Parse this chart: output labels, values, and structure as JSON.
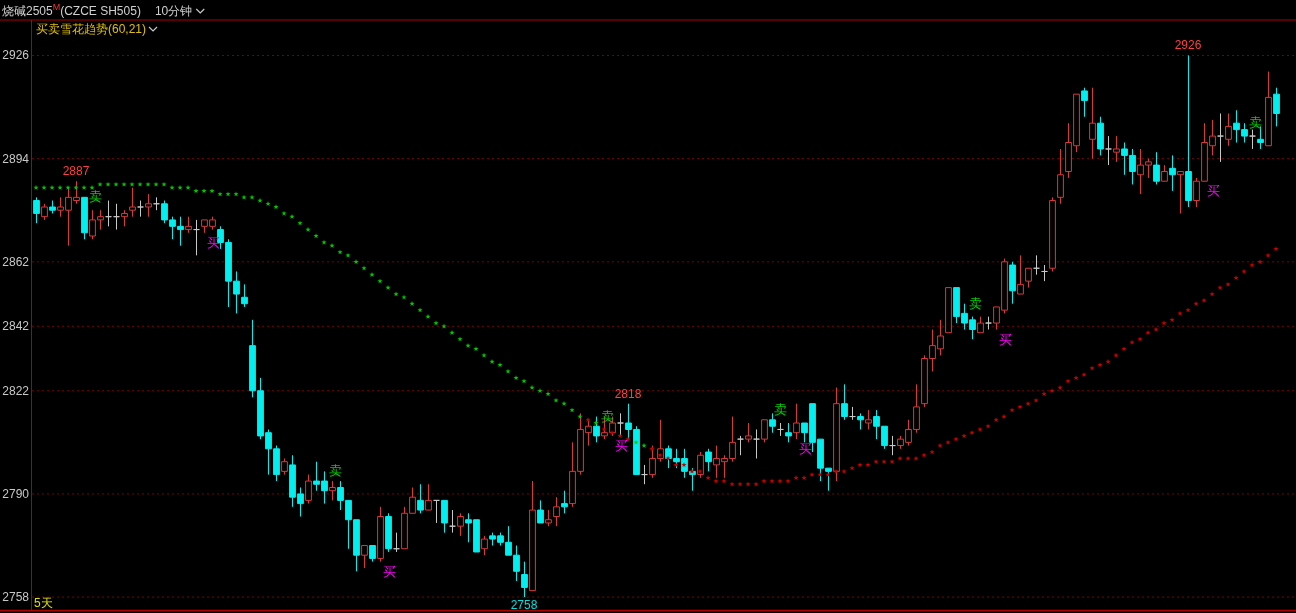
{
  "chart_data": {
    "type": "candlestick",
    "title": "烧碱2505$^{M}$(CZCE SH505)",
    "subtitle": "10分钟",
    "categories": [
      null,
      null,
      null,
      null,
      null,
      null,
      null,
      null,
      null,
      null,
      null,
      null,
      null,
      null,
      null,
      null,
      null,
      null,
      null,
      null,
      null,
      null,
      null,
      null,
      null,
      null,
      null,
      null,
      null,
      null,
      null,
      null,
      null,
      null,
      null,
      null,
      null,
      null,
      null,
      null,
      null,
      null,
      null,
      null,
      null,
      null,
      null,
      null,
      null,
      null,
      null,
      null,
      null,
      null,
      null,
      null,
      null,
      null,
      null,
      null,
      null,
      null,
      null,
      null,
      null,
      null,
      null,
      null,
      null,
      null,
      null,
      null,
      null,
      null,
      null,
      null,
      null,
      null,
      null,
      null,
      null,
      null,
      null,
      null,
      null,
      null,
      null,
      null,
      null,
      null,
      null,
      null,
      null,
      null,
      null,
      null,
      null,
      null,
      null,
      null,
      null,
      null,
      null,
      null,
      null,
      null,
      null,
      null,
      null,
      null,
      null,
      null,
      null,
      null,
      null,
      null,
      null,
      null,
      null,
      null,
      null,
      null,
      null,
      null,
      null,
      null,
      null,
      null,
      null,
      null,
      null,
      null,
      null,
      null,
      null,
      null,
      null,
      null,
      null,
      null,
      null,
      null,
      null,
      null,
      null,
      null,
      null,
      null,
      null,
      null,
      null,
      null,
      null,
      null,
      null,
      null
    ],
    "ohlc": [
      [
        2881,
        2882,
        2874,
        2877
      ],
      [
        2876,
        2880,
        2875,
        2879
      ],
      [
        2879,
        2881,
        2877,
        2878
      ],
      [
        2878,
        2882,
        2876,
        2879
      ],
      [
        2878,
        2885,
        2867,
        2882
      ],
      [
        2881,
        2887,
        2880,
        2882
      ],
      [
        2882,
        2882,
        2869,
        2871
      ],
      [
        2870,
        2878,
        2869,
        2875
      ],
      [
        2875,
        2878,
        2872,
        2876
      ],
      [
        2876,
        2881,
        2873,
        2876
      ],
      [
        2876,
        2880,
        2872,
        2876
      ],
      [
        2876,
        2878,
        2873,
        2877
      ],
      [
        2878,
        2885,
        2876,
        2879
      ],
      [
        2879,
        2881,
        2876,
        2879
      ],
      [
        2879,
        2883,
        2876,
        2880
      ],
      [
        2880,
        2882,
        2878,
        2880
      ],
      [
        2880,
        2881,
        2874,
        2875
      ],
      [
        2875,
        2876,
        2869,
        2873
      ],
      [
        2873,
        2876,
        2867,
        2872
      ],
      [
        2872,
        2876,
        2871,
        2873
      ],
      [
        2872,
        2875,
        2864,
        2872
      ],
      [
        2873,
        2875,
        2871,
        2875
      ],
      [
        2873,
        2876,
        2872,
        2875
      ],
      [
        2872,
        2873,
        2866,
        2868
      ],
      [
        2868,
        2869,
        2848,
        2856
      ],
      [
        2856,
        2859,
        2846,
        2852
      ],
      [
        2851,
        2855,
        2848,
        2849
      ],
      [
        2836,
        2844,
        2820,
        2822
      ],
      [
        2822,
        2826,
        2807,
        2808
      ],
      [
        2809,
        2810,
        2796,
        2804
      ],
      [
        2804,
        2805,
        2794,
        2796
      ],
      [
        2797,
        2801,
        2796,
        2800
      ],
      [
        2799,
        2802,
        2786,
        2789
      ],
      [
        2790,
        2792,
        2783,
        2787
      ],
      [
        2788,
        2796,
        2787,
        2794
      ],
      [
        2794,
        2800,
        2791,
        2793
      ],
      [
        2794,
        2797,
        2787,
        2791
      ],
      [
        2791,
        2794,
        2788,
        2792
      ],
      [
        2792,
        2794,
        2785,
        2788
      ],
      [
        2788,
        2788,
        2773,
        2782
      ],
      [
        2782,
        2782,
        2766,
        2771
      ],
      [
        2771,
        2774,
        2767,
        2774
      ],
      [
        2774,
        2774,
        2769,
        2770
      ],
      [
        2770,
        2786,
        2769,
        2783
      ],
      [
        2783,
        2784,
        2772,
        2773
      ],
      [
        2773,
        2778,
        2772,
        2773
      ],
      [
        2773,
        2786,
        2773,
        2784
      ],
      [
        2784,
        2792,
        2784,
        2789
      ],
      [
        2788,
        2793,
        2784,
        2785
      ],
      [
        2785,
        2793,
        2785,
        2788
      ],
      [
        2788,
        2788,
        2781,
        2788
      ],
      [
        2788,
        2788,
        2778,
        2781
      ],
      [
        2780,
        2785,
        2778,
        2780
      ],
      [
        2780,
        2784,
        2777,
        2783
      ],
      [
        2782,
        2784,
        2775,
        2781
      ],
      [
        2782,
        2782,
        2772,
        2772
      ],
      [
        2773,
        2777,
        2771,
        2776
      ],
      [
        2777,
        2778,
        2774,
        2776
      ],
      [
        2777,
        2778,
        2774,
        2775
      ],
      [
        2775,
        2780,
        2771,
        2771
      ],
      [
        2771,
        2774,
        2763,
        2766
      ],
      [
        2765,
        2769,
        2758,
        2761
      ],
      [
        2760,
        2794,
        2760,
        2785
      ],
      [
        2785,
        2788,
        2781,
        2781
      ],
      [
        2781,
        2785,
        2780,
        2782
      ],
      [
        2783,
        2789,
        2780,
        2786
      ],
      [
        2787,
        2791,
        2784,
        2786
      ],
      [
        2787,
        2806,
        2786,
        2797
      ],
      [
        2797,
        2815,
        2796,
        2810
      ],
      [
        2809,
        2813,
        2805,
        2811
      ],
      [
        2811,
        2814,
        2806,
        2808
      ],
      [
        2808,
        2814,
        2807,
        2809
      ],
      [
        2809,
        2814,
        2808,
        2812
      ],
      [
        2812,
        2815,
        2808,
        2812
      ],
      [
        2812,
        2818,
        2807,
        2810
      ],
      [
        2810,
        2811,
        2796,
        2796
      ],
      [
        2796,
        2799,
        2793,
        2796
      ],
      [
        2796,
        2805,
        2795,
        2801
      ],
      [
        2801,
        2813,
        2800,
        2804
      ],
      [
        2804,
        2805,
        2798,
        2801
      ],
      [
        2801,
        2804,
        2798,
        2800
      ],
      [
        2801,
        2804,
        2795,
        2797
      ],
      [
        2797,
        2798,
        2791,
        2796
      ],
      [
        2796,
        2803,
        2795,
        2802
      ],
      [
        2803,
        2804,
        2797,
        2800
      ],
      [
        2799,
        2805,
        2795,
        2801
      ],
      [
        2800,
        2802,
        2795,
        2801
      ],
      [
        2801,
        2814,
        2800,
        2806
      ],
      [
        2807,
        2808,
        2802,
        2807
      ],
      [
        2807,
        2812,
        2806,
        2808
      ],
      [
        2807,
        2810,
        2801,
        2807
      ],
      [
        2807,
        2813,
        2806,
        2813
      ],
      [
        2813,
        2815,
        2809,
        2811
      ],
      [
        2810,
        2812,
        2808,
        2810
      ],
      [
        2809,
        2812,
        2806,
        2808
      ],
      [
        2809,
        2818,
        2807,
        2812
      ],
      [
        2812,
        2812,
        2806,
        2809
      ],
      [
        2818,
        2818,
        2803,
        2806
      ],
      [
        2807,
        2807,
        2794,
        2798
      ],
      [
        2798,
        2798,
        2791,
        2797
      ],
      [
        2797,
        2823,
        2794,
        2818
      ],
      [
        2818,
        2824,
        2813,
        2814
      ],
      [
        2814,
        2817,
        2813,
        2814
      ],
      [
        2814,
        2815,
        2810,
        2813
      ],
      [
        2812,
        2816,
        2810,
        2813
      ],
      [
        2814,
        2816,
        2807,
        2811
      ],
      [
        2811,
        2811,
        2804,
        2805
      ],
      [
        2805,
        2808,
        2802,
        2805
      ],
      [
        2805,
        2808,
        2804,
        2807
      ],
      [
        2806,
        2813,
        2805,
        2810
      ],
      [
        2810,
        2824,
        2809,
        2817
      ],
      [
        2818,
        2833,
        2817,
        2832
      ],
      [
        2832,
        2841,
        2828,
        2836
      ],
      [
        2835,
        2844,
        2833,
        2839
      ],
      [
        2840,
        2854,
        2840,
        2854
      ],
      [
        2854,
        2854,
        2843,
        2845
      ],
      [
        2846,
        2849,
        2841,
        2843
      ],
      [
        2844,
        2845,
        2838,
        2841
      ],
      [
        2840,
        2845,
        2840,
        2843
      ],
      [
        2843,
        2845,
        2841,
        2843
      ],
      [
        2843,
        2848,
        2841,
        2848
      ],
      [
        2847,
        2863,
        2846,
        2862
      ],
      [
        2861,
        2862,
        2849,
        2853
      ],
      [
        2852,
        2864,
        2852,
        2855
      ],
      [
        2856,
        2860,
        2854,
        2860
      ],
      [
        2860,
        2864,
        2858,
        2860
      ],
      [
        2859,
        2861,
        2856,
        2859
      ],
      [
        2860,
        2882,
        2859,
        2881
      ],
      [
        2882,
        2897,
        2880,
        2889
      ],
      [
        2890,
        2905,
        2888,
        2899
      ],
      [
        2898,
        2914,
        2896,
        2914
      ],
      [
        2915,
        2916,
        2907,
        2912
      ],
      [
        2900,
        2916,
        2894,
        2905
      ],
      [
        2905,
        2907,
        2895,
        2897
      ],
      [
        2897,
        2901,
        2892,
        2897
      ],
      [
        2896,
        2901,
        2893,
        2897
      ],
      [
        2897,
        2899,
        2889,
        2895
      ],
      [
        2895,
        2897,
        2886,
        2890
      ],
      [
        2889,
        2897,
        2883,
        2892
      ],
      [
        2892,
        2894,
        2888,
        2893
      ],
      [
        2892,
        2896,
        2886,
        2887
      ],
      [
        2887,
        2892,
        2887,
        2890
      ],
      [
        2891,
        2895,
        2884,
        2889
      ],
      [
        2889,
        2890,
        2877,
        2890
      ],
      [
        2890,
        2926,
        2879,
        2881
      ],
      [
        2881,
        2888,
        2879,
        2887
      ],
      [
        2887,
        2905,
        2887,
        2899
      ],
      [
        2898,
        2906,
        2895,
        2901
      ],
      [
        2901,
        2908,
        2893,
        2901
      ],
      [
        2900,
        2908,
        2898,
        2904
      ],
      [
        2905,
        2909,
        2899,
        2903
      ],
      [
        2903,
        2905,
        2899,
        2901
      ],
      [
        2901,
        2903,
        2897,
        2901
      ],
      [
        2900,
        2904,
        2897,
        2899
      ],
      [
        2898,
        2921,
        2898,
        2913
      ],
      [
        2914,
        2916,
        2904,
        2908
      ]
    ],
    "series": [
      {
        "type": "scatter",
        "color": "#00c800",
        "values": [
          2885,
          2885,
          2885,
          2885,
          2885,
          2885,
          2885,
          2885,
          2886,
          2886,
          2886,
          2886,
          2886,
          2886,
          2886,
          2886,
          2886,
          2885,
          2885,
          2885,
          2884,
          2884,
          2884,
          2883,
          2883,
          2883,
          2882,
          2882,
          2881,
          2880,
          2879,
          2877,
          2876,
          2874,
          2872,
          2870,
          2868,
          2867,
          2865,
          2864,
          2862,
          2860,
          2858,
          2856,
          2854,
          2852,
          2851,
          2849,
          2847,
          2845,
          2843,
          2842,
          2840,
          2838,
          2836,
          2835,
          2833,
          2831,
          2830,
          2828,
          2826,
          2825,
          2823,
          2822,
          2821,
          2819,
          2818,
          2816,
          2814,
          null,
          2812,
          null,
          null,
          null,
          null,
          2806,
          2805,
          null,
          null,
          null,
          null,
          null,
          null,
          null,
          null,
          null,
          null,
          null,
          null,
          null,
          null,
          null,
          null,
          null,
          null,
          null,
          null,
          null,
          null,
          null,
          null,
          null,
          null,
          null,
          null,
          null,
          null,
          null,
          null,
          null,
          null,
          null,
          null,
          null,
          null,
          null,
          null,
          null,
          null,
          null,
          null,
          null,
          null,
          null,
          null,
          null,
          null,
          null,
          null,
          null,
          null,
          null,
          null,
          null,
          null,
          null,
          null,
          null,
          null,
          null,
          null,
          null,
          null,
          null,
          null,
          null,
          null,
          null,
          null,
          null,
          null,
          null,
          null,
          null,
          null,
          null
        ]
      },
      {
        "type": "scatter",
        "color": "#c80000",
        "values": [
          null,
          null,
          null,
          null,
          null,
          null,
          null,
          null,
          null,
          null,
          null,
          null,
          null,
          null,
          null,
          null,
          null,
          null,
          null,
          null,
          null,
          null,
          null,
          null,
          null,
          null,
          null,
          null,
          null,
          null,
          null,
          null,
          null,
          null,
          null,
          null,
          null,
          null,
          null,
          null,
          null,
          null,
          null,
          null,
          null,
          null,
          null,
          null,
          null,
          null,
          null,
          null,
          null,
          null,
          null,
          null,
          null,
          null,
          null,
          null,
          null,
          null,
          null,
          null,
          null,
          null,
          null,
          null,
          null,
          2813,
          null,
          2810,
          2809,
          2808,
          2807,
          null,
          null,
          2804,
          2802,
          2801,
          2799,
          2799,
          2797,
          2797,
          2795,
          2794,
          2794,
          2793,
          2793,
          2793,
          2793,
          2794,
          2794,
          2794,
          2794,
          2795,
          2795,
          2796,
          2796,
          2796,
          2797,
          2797,
          2798,
          2799,
          2799,
          2800,
          2800,
          2800,
          2801,
          2801,
          2801,
          2802,
          2803,
          2805,
          2806,
          2807,
          2808,
          2809,
          2810,
          2811,
          2813,
          2814,
          2816,
          2817,
          2818,
          2819,
          2821,
          2822,
          2823,
          2825,
          2826,
          2827,
          2829,
          2830,
          2831,
          2833,
          2835,
          2837,
          2838,
          2840,
          2841,
          2843,
          2844,
          2846,
          2847,
          2849,
          2850,
          2852,
          2854,
          2855,
          2857,
          2859,
          2861,
          2862,
          2864,
          2866
        ]
      }
    ],
    "marker": "star",
    "ylim": [
      2754,
      2937
    ],
    "yticks": [
      2926,
      2894,
      2862,
      2842,
      2822,
      2790,
      2758
    ],
    "grid": "y",
    "tick_labels": "y",
    "annotations": [
      "买卖雪花趋势(60,21)",
      "5天",
      {
        "text": "2887",
        "y": 2887
      },
      {
        "text": "2818",
        "y": 2818
      },
      {
        "text": "2926",
        "y": 2926
      },
      {
        "text": "2758",
        "y": 2758
      },
      "卖",
      "卖",
      "卖",
      "卖",
      "卖",
      "卖",
      "买",
      "买",
      "买",
      "买",
      "买",
      "买"
    ]
  }
}
